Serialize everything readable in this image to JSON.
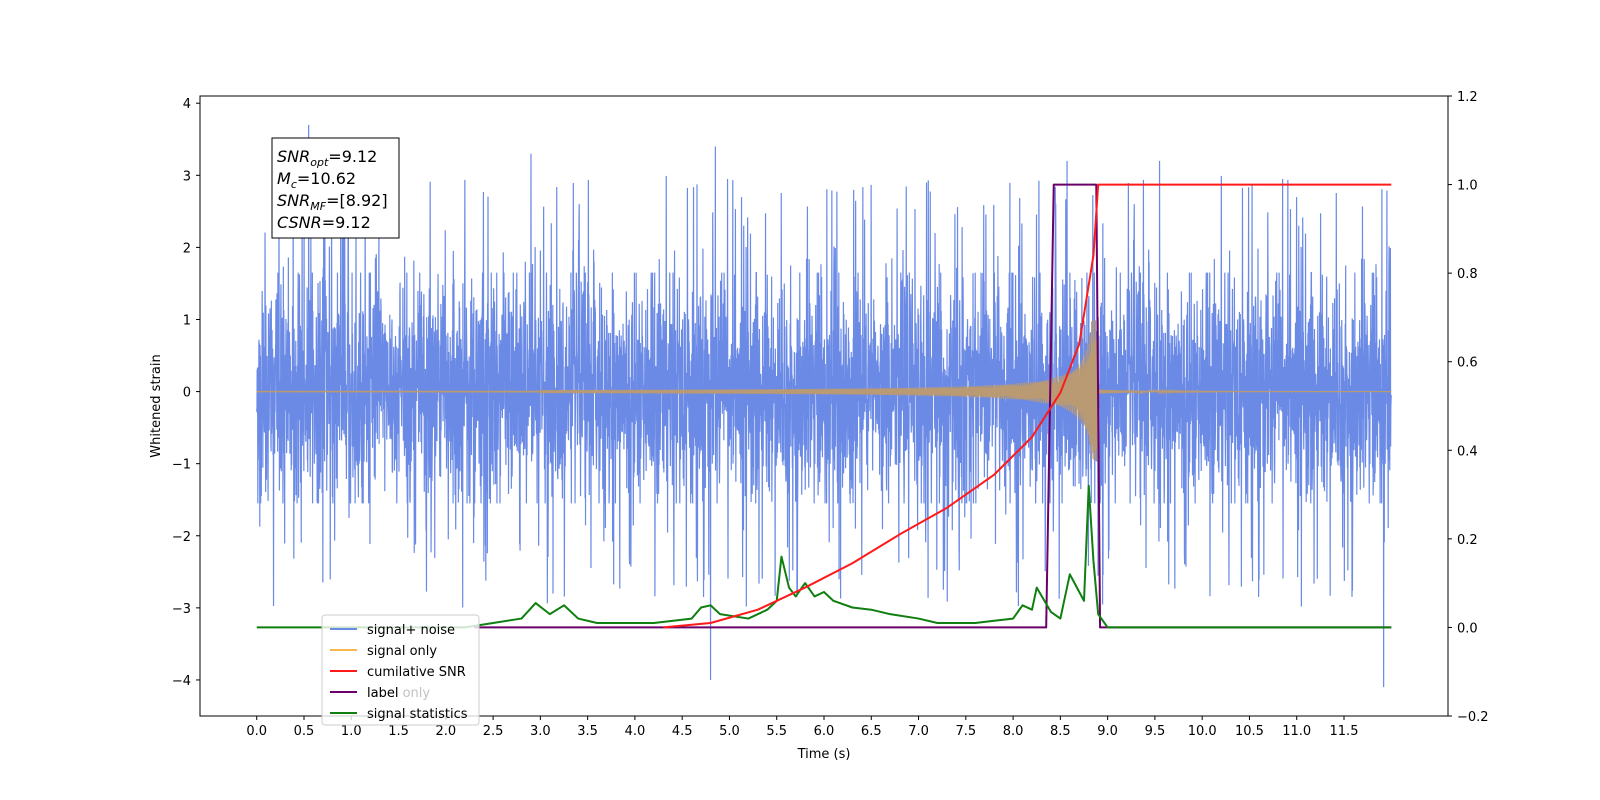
{
  "chart_data": {
    "type": "line",
    "xlabel": "Time (s)",
    "ylabel": "Whitened strain",
    "xlim": [
      -0.6,
      12.6
    ],
    "ylim": [
      -4.5,
      4.1
    ],
    "y2lim": [
      -0.2,
      1.2
    ],
    "x_ticks": [
      "0.0",
      "0.5",
      "1.0",
      "1.5",
      "2.0",
      "2.5",
      "3.0",
      "3.5",
      "4.0",
      "4.5",
      "5.0",
      "5.5",
      "6.0",
      "6.5",
      "7.0",
      "7.5",
      "8.0",
      "8.5",
      "9.0",
      "9.5",
      "10.0",
      "10.5",
      "11.0",
      "11.5"
    ],
    "y_ticks": [
      "4",
      "3",
      "2",
      "1",
      "0",
      "−1",
      "−2",
      "−3",
      "−4"
    ],
    "y_tick_values": [
      4,
      3,
      2,
      1,
      0,
      -1,
      -2,
      -3,
      -4
    ],
    "y2_ticks": [
      "1.2",
      "1.0",
      "0.8",
      "0.6",
      "0.4",
      "0.2",
      "0.0",
      "−0.2"
    ],
    "y2_tick_values": [
      1.2,
      1.0,
      0.8,
      0.6,
      0.4,
      0.2,
      0.0,
      -0.2
    ],
    "stats_box": [
      {
        "var": "SNR",
        "sub": "opt",
        "value": "=9.12"
      },
      {
        "var": "M",
        "sub": "c",
        "value": "=10.62"
      },
      {
        "var": "SNR",
        "sub": "MF",
        "value": "=[8.92]"
      },
      {
        "var": "CSNR",
        "sub": "",
        "value": "=9.12"
      }
    ],
    "legend": {
      "placement": "lower-left",
      "entries": [
        "signal+ noise",
        "signal only",
        "cumilative SNR",
        "label",
        "signal statistics"
      ],
      "hidden_text": [
        "label only"
      ]
    },
    "colors": {
      "signal_noise": "#6a8ae6",
      "signal_only": "#f8b74b",
      "signal_blend": "#b99a72",
      "cumulative_snr": "#ff1a1a",
      "label": "#6a006a",
      "signal_statistics": "#0f7f0f"
    },
    "series": [
      {
        "name": "signal+ noise",
        "axis": "left",
        "description_values": {
          "t_start": 0.0,
          "t_end": 12.0,
          "typical_range": [
            -1.6,
            1.7
          ],
          "extremes": [
            [
              0.55,
              3.7
            ],
            [
              4.8,
              -4.0
            ],
            [
              11.92,
              -4.1
            ],
            [
              8.57,
              3.2
            ],
            [
              9.55,
              3.2
            ],
            [
              2.9,
              3.3
            ],
            [
              4.85,
              3.4
            ]
          ]
        }
      },
      {
        "name": "signal only",
        "axis": "left",
        "description_values": {
          "chirp_peak_time": 8.88,
          "peak_amplitude": 1.0,
          "merger_time": 8.9
        }
      },
      {
        "name": "cumilative SNR",
        "axis": "right",
        "x": [
          4.3,
          4.8,
          5.3,
          5.8,
          6.3,
          6.8,
          7.3,
          7.8,
          8.2,
          8.5,
          8.7,
          8.85,
          8.9,
          9.1,
          12.0
        ],
        "y": [
          0.0,
          0.01,
          0.04,
          0.09,
          0.145,
          0.21,
          0.27,
          0.345,
          0.43,
          0.53,
          0.64,
          0.84,
          1.0,
          1.0,
          1.0
        ]
      },
      {
        "name": "label",
        "axis": "right",
        "x": [
          2.3,
          8.35,
          8.43,
          8.88,
          8.92,
          12.0
        ],
        "y": [
          0.0,
          0.0,
          1.0,
          1.0,
          0.0,
          0.0
        ]
      },
      {
        "name": "signal statistics",
        "axis": "right",
        "x": [
          0.0,
          2.2,
          2.5,
          2.8,
          2.95,
          3.1,
          3.25,
          3.4,
          3.6,
          3.9,
          4.2,
          4.6,
          4.7,
          4.8,
          4.9,
          5.2,
          5.4,
          5.5,
          5.55,
          5.63,
          5.7,
          5.8,
          5.9,
          6.0,
          6.1,
          6.3,
          6.5,
          6.7,
          7.0,
          7.2,
          7.4,
          7.6,
          7.8,
          8.0,
          8.1,
          8.2,
          8.25,
          8.4,
          8.5,
          8.6,
          8.65,
          8.75,
          8.8,
          8.85,
          8.9,
          9.0,
          9.2,
          12.0
        ],
        "y": [
          0.0,
          0.0,
          0.01,
          0.02,
          0.055,
          0.03,
          0.05,
          0.02,
          0.01,
          0.01,
          0.01,
          0.02,
          0.045,
          0.05,
          0.03,
          0.02,
          0.04,
          0.06,
          0.16,
          0.09,
          0.07,
          0.1,
          0.07,
          0.08,
          0.06,
          0.045,
          0.04,
          0.03,
          0.02,
          0.01,
          0.01,
          0.01,
          0.015,
          0.02,
          0.05,
          0.04,
          0.09,
          0.035,
          0.02,
          0.12,
          0.1,
          0.06,
          0.32,
          0.15,
          0.03,
          0.0,
          0.0,
          0.0
        ]
      }
    ]
  }
}
